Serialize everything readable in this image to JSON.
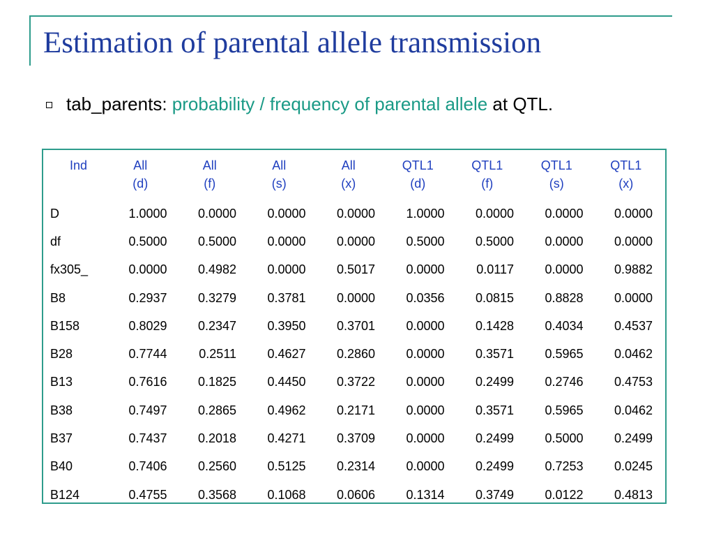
{
  "slide": {
    "title": "Estimation of parental allele transmission",
    "bullet_label": "tab_parents:",
    "bullet_highlight": "probability / frequency of parental allele",
    "bullet_tail": "at QTL."
  },
  "table": {
    "headers": [
      {
        "line1": "Ind",
        "line2": ""
      },
      {
        "line1": "All",
        "line2": "(d)"
      },
      {
        "line1": "All",
        "line2": "(f)"
      },
      {
        "line1": "All",
        "line2": "(s)"
      },
      {
        "line1": "All",
        "line2": "(x)"
      },
      {
        "line1": "QTL1",
        "line2": "(d)"
      },
      {
        "line1": "QTL1",
        "line2": "(f)"
      },
      {
        "line1": "QTL1",
        "line2": "(s)"
      },
      {
        "line1": "QTL1",
        "line2": "(x)"
      }
    ],
    "rows": [
      [
        "D",
        "1.0000",
        "0.0000",
        "0.0000",
        "0.0000",
        "1.0000",
        "0.0000",
        "0.0000",
        "0.0000"
      ],
      [
        "df",
        "0.5000",
        "0.5000",
        "0.0000",
        "0.0000",
        "0.5000",
        "0.5000",
        "0.0000",
        "0.0000"
      ],
      [
        "fx305_",
        "0.0000",
        "0.4982",
        "0.0000",
        "0.5017",
        "0.0000",
        "0.0117",
        "0.0000",
        "0.9882"
      ],
      [
        "B8",
        "0.2937",
        "0.3279",
        "0.3781",
        "0.0000",
        "0.0356",
        "0.0815",
        "0.8828",
        "0.0000"
      ],
      [
        "B158",
        "0.8029",
        "0.2347",
        "0.3950",
        "0.3701",
        "0.0000",
        "0.1428",
        "0.4034",
        "0.4537"
      ],
      [
        "B28",
        "0.7744",
        "0.2511",
        "0.4627",
        "0.2860",
        "0.0000",
        "0.3571",
        "0.5965",
        "0.0462"
      ],
      [
        "B13",
        "0.7616",
        "0.1825",
        "0.4450",
        "0.3722",
        "0.0000",
        "0.2499",
        "0.2746",
        "0.4753"
      ],
      [
        "B38",
        "0.7497",
        "0.2865",
        "0.4962",
        "0.2171",
        "0.0000",
        "0.3571",
        "0.5965",
        "0.0462"
      ],
      [
        "B37",
        "0.7437",
        "0.2018",
        "0.4271",
        "0.3709",
        "0.0000",
        "0.2499",
        "0.5000",
        "0.2499"
      ],
      [
        "B40",
        "0.7406",
        "0.2560",
        "0.5125",
        "0.2314",
        "0.0000",
        "0.2499",
        "0.7253",
        "0.0245"
      ],
      [
        "B124",
        "0.4755",
        "0.3568",
        "0.1068",
        "0.0606",
        "0.1314",
        "0.3749",
        "0.0122",
        "0.4813"
      ]
    ]
  },
  "colors": {
    "title": "#1f3c9e",
    "accent": "#2e9c8c",
    "highlight": "#1a9a86",
    "header_text": "#1f3fbf"
  }
}
